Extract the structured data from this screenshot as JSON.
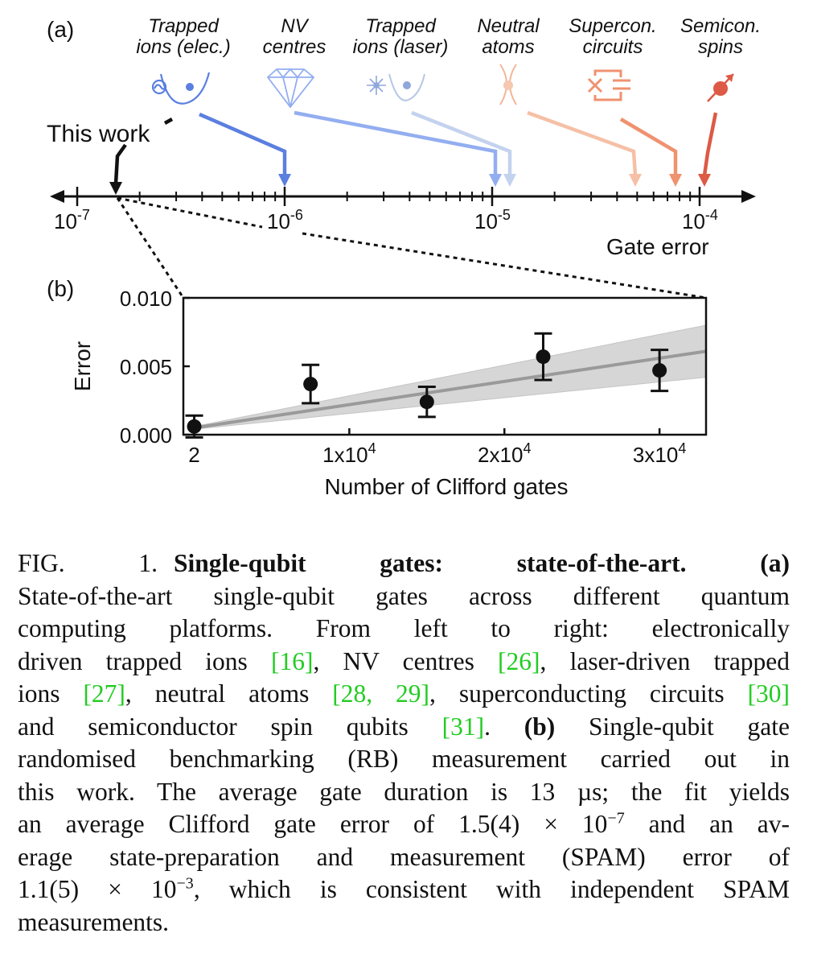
{
  "panel_a": {
    "label": "(a)",
    "this_work_label": "This work",
    "axis_title": "Gate error",
    "ticks": [
      {
        "base": "10",
        "exp": "-7",
        "value": 1e-07
      },
      {
        "base": "10",
        "exp": "-6",
        "value": 1e-06
      },
      {
        "base": "10",
        "exp": "-5",
        "value": 1e-05
      },
      {
        "base": "10",
        "exp": "-4",
        "value": 0.0001
      }
    ],
    "platforms": [
      {
        "line1": "Trapped",
        "line2": "ions (elec.)",
        "error": 1e-06,
        "color": "#5b7fe0",
        "icon": "trapped-ion-electronic-icon"
      },
      {
        "line1": "NV",
        "line2": "centres",
        "error": 1e-05,
        "color": "#93aef0",
        "icon": "diamond-icon"
      },
      {
        "line1": "Trapped",
        "line2": "ions (laser)",
        "error": 1.2e-05,
        "color": "#c3d2ee",
        "icon": "laser-ion-icon"
      },
      {
        "line1": "Neutral",
        "line2": "atoms",
        "error": 4.8e-05,
        "color": "#f5c0a6",
        "icon": "optical-tweezer-icon"
      },
      {
        "line1": "Supercon.",
        "line2": "circuits",
        "error": 7.3e-05,
        "color": "#ef9270",
        "icon": "superconducting-circuit-icon"
      },
      {
        "line1": "Semicon.",
        "line2": "spins",
        "error": 0.0001,
        "color": "#dd5a45",
        "icon": "spin-icon"
      }
    ],
    "this_work_error": 1.5e-07
  },
  "chart_data": {
    "type": "scatter",
    "label": "(b)",
    "xlabel": "Number of Clifford gates",
    "ylabel": "Error",
    "xlim": [
      -700,
      33000
    ],
    "ylim": [
      0,
      0.01
    ],
    "xticks": [
      {
        "value": 2,
        "label": "2",
        "exp": ""
      },
      {
        "value": 10000,
        "label": "1x10",
        "exp": "4"
      },
      {
        "value": 20000,
        "label": "2x10",
        "exp": "4"
      },
      {
        "value": 30000,
        "label": "3x10",
        "exp": "4"
      }
    ],
    "yticks": [
      {
        "value": 0.0,
        "label": "0.000"
      },
      {
        "value": 0.005,
        "label": "0.005"
      },
      {
        "value": 0.01,
        "label": "0.010"
      }
    ],
    "points": [
      {
        "x": 2,
        "y": 0.0006,
        "err": 0.0008
      },
      {
        "x": 7500,
        "y": 0.0037,
        "err": 0.0014
      },
      {
        "x": 15000,
        "y": 0.0024,
        "err": 0.0011
      },
      {
        "x": 22500,
        "y": 0.0057,
        "err": 0.0017
      },
      {
        "x": 30000,
        "y": 0.0047,
        "err": 0.0015
      }
    ],
    "fit": {
      "x": [
        0,
        33000
      ],
      "y": [
        0.0005,
        0.0061
      ],
      "band_lo": [
        0.0004,
        0.0042
      ],
      "band_hi": [
        0.0006,
        0.008
      ]
    }
  },
  "caption": {
    "fig_label": "FIG. 1.",
    "title": "Single-qubit gates: state-of-the-art.",
    "a_label": "(a)",
    "a_text": [
      "State-of-the-art single-qubit gates across different quantum",
      "computing platforms.",
      "From left to right:",
      "electronically",
      "driven trapped ions",
      "NV centres",
      "laser-driven trapped",
      "ions",
      "neutral atoms",
      "superconducting circuits",
      "and semiconductor spin qubits"
    ],
    "refs": [
      "[16]",
      "[26]",
      "[27]",
      "[28, 29]",
      "[30]",
      "[31]"
    ],
    "b_label": "(b)",
    "b_text": [
      "Single-qubit gate",
      "randomised benchmarking (RB) measurement carried out in",
      "this work. The average gate duration is 13 µs; the fit yields",
      "an average Clifford gate error of 1.5(4) × 10",
      "and an av-",
      "erage state-preparation and measurement (SPAM) error of",
      "1.1(5) × 10",
      ", which is consistent with independent SPAM",
      "measurements."
    ],
    "exp_a": "−7",
    "exp_b": "−3"
  }
}
